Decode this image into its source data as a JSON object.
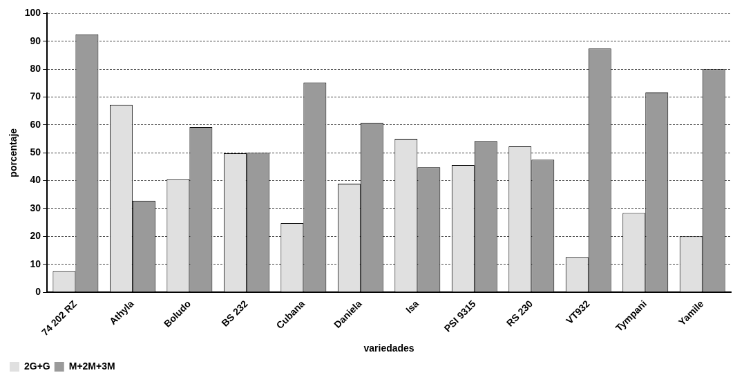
{
  "chart_data": {
    "type": "bar",
    "xlabel": "variedades",
    "ylabel": "porcentaje",
    "categories": [
      "74 202 RZ",
      "Athyla",
      "Boludo",
      "BS 232",
      "Cubana",
      "Daniela",
      "Isa",
      "PSI 9315",
      "RS 230",
      "VT932",
      "Tympani",
      "Yamile"
    ],
    "series": [
      {
        "name": "2G+G",
        "color": "#e0e0e0",
        "values": [
          7.5,
          67.2,
          40.6,
          49.8,
          24.8,
          38.9,
          55,
          45.6,
          52.3,
          12.6,
          28.4,
          20
        ]
      },
      {
        "name": "M+2M+3M",
        "color": "#9a9a9a",
        "values": [
          92.5,
          32.8,
          59.2,
          50,
          75.2,
          60.8,
          44.8,
          54.2,
          47.5,
          87.4,
          71.6,
          80
        ]
      }
    ],
    "ylim": [
      0,
      100
    ],
    "yticks": [
      0,
      10,
      20,
      30,
      40,
      50,
      60,
      70,
      80,
      90,
      100
    ],
    "grid": "y",
    "legend": "bottom left"
  }
}
